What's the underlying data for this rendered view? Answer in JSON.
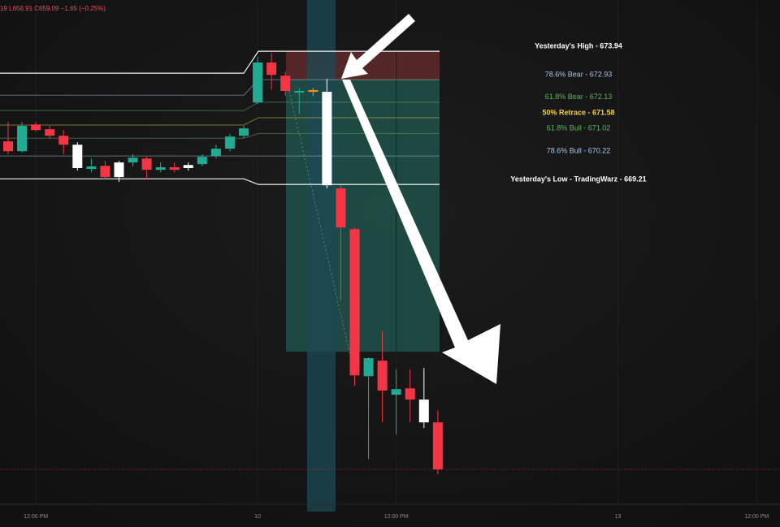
{
  "chart_data": {
    "type": "candlestick",
    "header": "19 L658.91 C659.09 −1.65 (−0.25%)",
    "categories": [
      null,
      null,
      "12:00 PM",
      null,
      null,
      null,
      null,
      null,
      null,
      null,
      null,
      null,
      null,
      null,
      null,
      null,
      null,
      null,
      "10",
      null,
      null,
      null,
      null,
      null,
      null,
      null,
      null,
      null,
      "12:00 PM",
      null,
      null,
      null,
      null,
      null,
      null,
      null,
      null,
      null,
      null,
      null,
      null,
      null,
      null,
      null,
      "13",
      null,
      null,
      null,
      null,
      null,
      null,
      null,
      null,
      null,
      "12:00 PM"
    ],
    "open": [
      670.74,
      670.39,
      671.34,
      671.17,
      670.94,
      670.62,
      669.76,
      669.87,
      669.99,
      669.99,
      670.13,
      669.73,
      669.82,
      669.9,
      669.93,
      670.22,
      670.48,
      670.94,
      672.12,
      673.54,
      673.07,
      672.47,
      672.56,
      672.5,
      669.07,
      667.62,
      662.4,
      662.95,
      661.74,
      661.97,
      661.57,
      660.76,
      null,
      null,
      null,
      null,
      null,
      null,
      null,
      null,
      null,
      null,
      null,
      null,
      null,
      null,
      null,
      null,
      null,
      null,
      null,
      null,
      null,
      null,
      null
    ],
    "high": [
      671.43,
      671.43,
      671.43,
      671.29,
      671.14,
      670.71,
      670.13,
      670.05,
      670.05,
      670.28,
      670.19,
      669.99,
      669.99,
      669.99,
      670.28,
      670.62,
      671.0,
      671.29,
      673.74,
      673.88,
      673.22,
      672.64,
      672.64,
      672.96,
      669.18,
      667.68,
      663.07,
      663.99,
      662.64,
      662.64,
      662.69,
      661.19,
      null,
      null,
      null,
      null,
      null,
      null,
      null,
      null,
      null,
      null,
      null,
      null,
      null,
      null,
      null,
      null,
      null,
      null,
      null,
      null,
      null,
      null,
      null
    ],
    "low": [
      670.28,
      670.34,
      671.09,
      670.85,
      670.28,
      669.7,
      669.64,
      669.41,
      669.3,
      669.85,
      669.41,
      669.64,
      669.64,
      669.7,
      669.85,
      670.13,
      670.39,
      670.85,
      672.07,
      672.58,
      672.35,
      671.72,
      672.35,
      669.07,
      665.09,
      662.06,
      659.46,
      660.76,
      660.33,
      660.76,
      660.56,
      658.91,
      null,
      null,
      null,
      null,
      null,
      null,
      null,
      null,
      null,
      null,
      null,
      null,
      null,
      null,
      null,
      null,
      null,
      null,
      null,
      null,
      null,
      null,
      null
    ],
    "close": [
      670.39,
      671.29,
      671.14,
      670.94,
      670.62,
      669.79,
      669.85,
      669.47,
      669.47,
      670.16,
      669.73,
      669.82,
      669.73,
      669.79,
      670.19,
      670.48,
      670.91,
      671.2,
      673.54,
      673.1,
      672.53,
      672.53,
      672.5,
      669.18,
      667.68,
      662.43,
      663.04,
      661.89,
      661.94,
      661.57,
      660.76,
      659.09,
      null,
      null,
      null,
      null,
      null,
      null,
      null,
      null,
      null,
      null,
      null,
      null,
      null,
      null,
      null,
      null,
      null,
      null,
      null,
      null,
      null,
      null,
      null
    ],
    "colors": [
      "#f23645",
      "#22ab94",
      "#f23645",
      "#f23645",
      "#f23645",
      "#ffffff",
      "#22ab94",
      "#f23645",
      "#ffffff",
      "#22ab94",
      "#f23645",
      "#22ab94",
      "#f23645",
      "#ffffff",
      "#22ab94",
      "#22ab94",
      "#22ab94",
      "#22ab94",
      "#22ab94",
      "#f23645",
      "#f23645",
      "#22ab94",
      "#ff9800",
      "#ffffff",
      "#f23645",
      "#f23645",
      "#22ab94",
      "#f23645",
      "#22ab94",
      "#f23645",
      "#ffffff",
      "#f23645",
      null,
      null,
      null,
      null,
      null,
      null,
      null,
      null,
      null,
      null,
      null,
      null,
      null,
      null,
      null,
      null,
      null,
      null,
      null,
      null,
      null,
      null,
      null
    ],
    "levels": [
      {
        "label": "Yesterday's High - 673.94",
        "value": 673.94,
        "prior": 673.16,
        "color": "#ffffff"
      },
      {
        "label": "78.6% Bear - 672.93",
        "value": 672.93,
        "prior": 672.38,
        "color": "#a9c6e4"
      },
      {
        "label": "61.8% Bear - 672.13",
        "value": 672.13,
        "prior": 671.83,
        "color": "#5fb35f"
      },
      {
        "label": "50% Retrace - 671.58",
        "value": 671.58,
        "prior": 671.32,
        "color": "#f3d046"
      },
      {
        "label": "61.8% Bull - 671.02",
        "value": 671.02,
        "prior": 670.85,
        "color": "#5fb35f"
      },
      {
        "label": "78.6% Bull - 670.22",
        "value": 670.22,
        "prior": 670.22,
        "color": "#a9c6e4"
      },
      {
        "label": "Yesterday's Low - TradingWarz - 669.21",
        "value": 669.21,
        "prior": 669.41,
        "color": "#ffffff"
      }
    ],
    "stop_zone": [
      672.93,
      673.94
    ],
    "target_zone": [
      663.27,
      672.93
    ],
    "ylim": [
      657.88,
      675.76
    ]
  }
}
